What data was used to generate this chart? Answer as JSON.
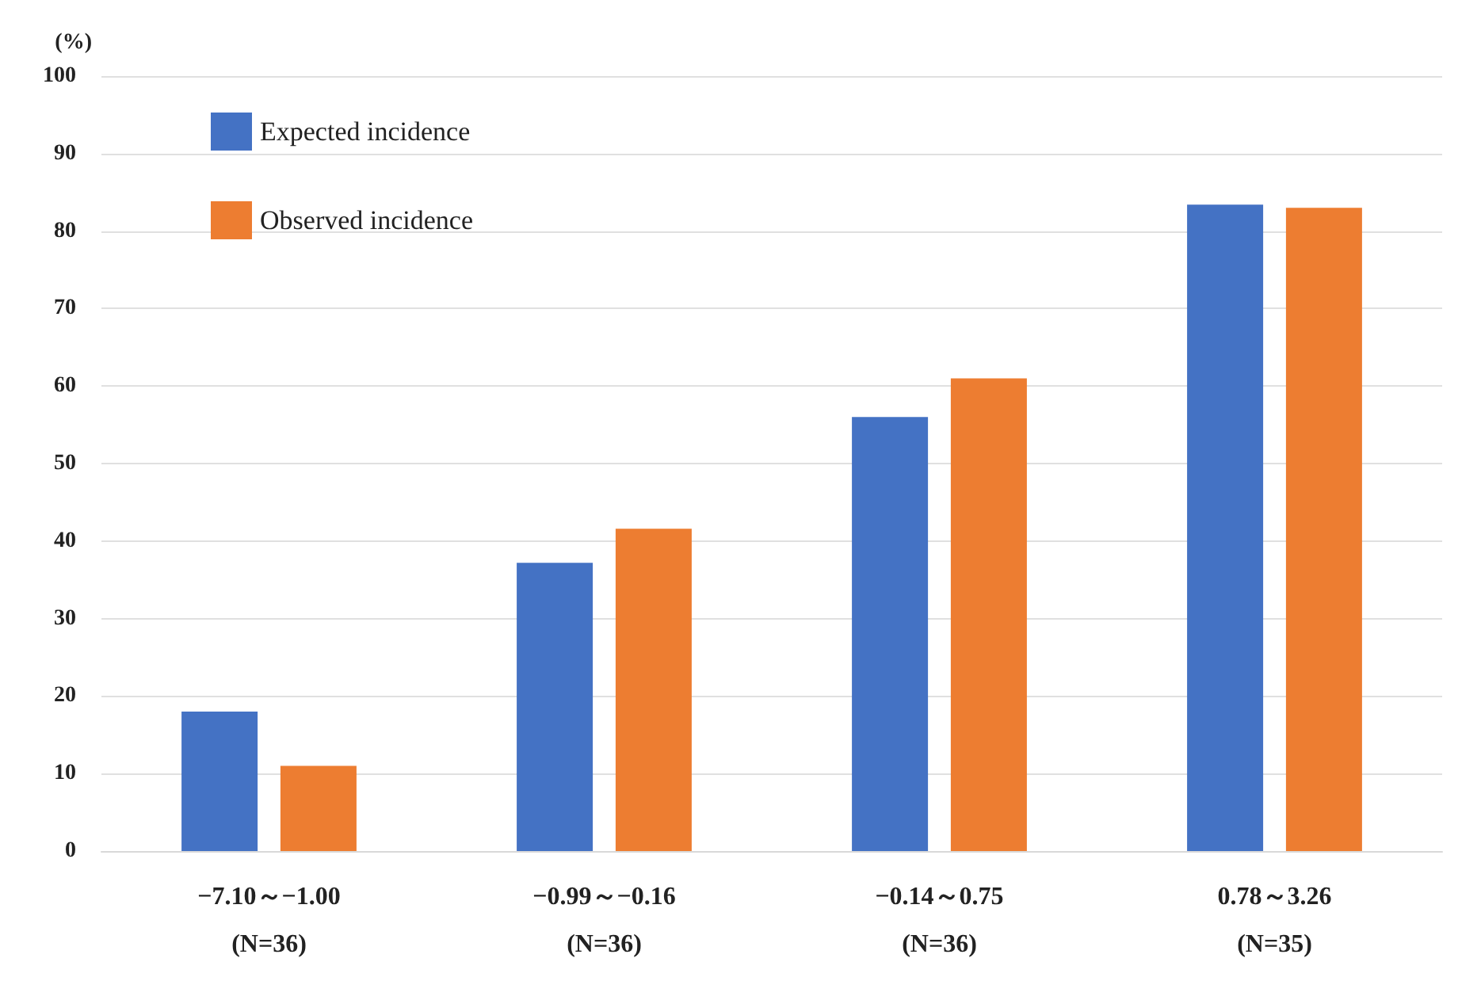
{
  "chart_data": {
    "type": "bar",
    "ylabel": "(%)",
    "categories": [
      "−7.10～−1.00\n(N=36)",
      "−0.99～−0.16\n(N=36)",
      "−0.14～0.75\n(N=36)",
      "0.78～3.26\n(N=35)"
    ],
    "series": [
      {
        "name": "Expected incidence",
        "color": "#4472c4",
        "values": [
          18,
          37.2,
          56,
          83.4
        ]
      },
      {
        "name": "Observed incidence",
        "color": "#ed7d31",
        "values": [
          11,
          41.6,
          61,
          83
        ]
      }
    ],
    "ylim": [
      0,
      100
    ],
    "yticks": [
      0,
      10,
      20,
      30,
      40,
      50,
      60,
      70,
      80,
      90,
      100
    ],
    "grid": "y",
    "legend": "top left"
  }
}
